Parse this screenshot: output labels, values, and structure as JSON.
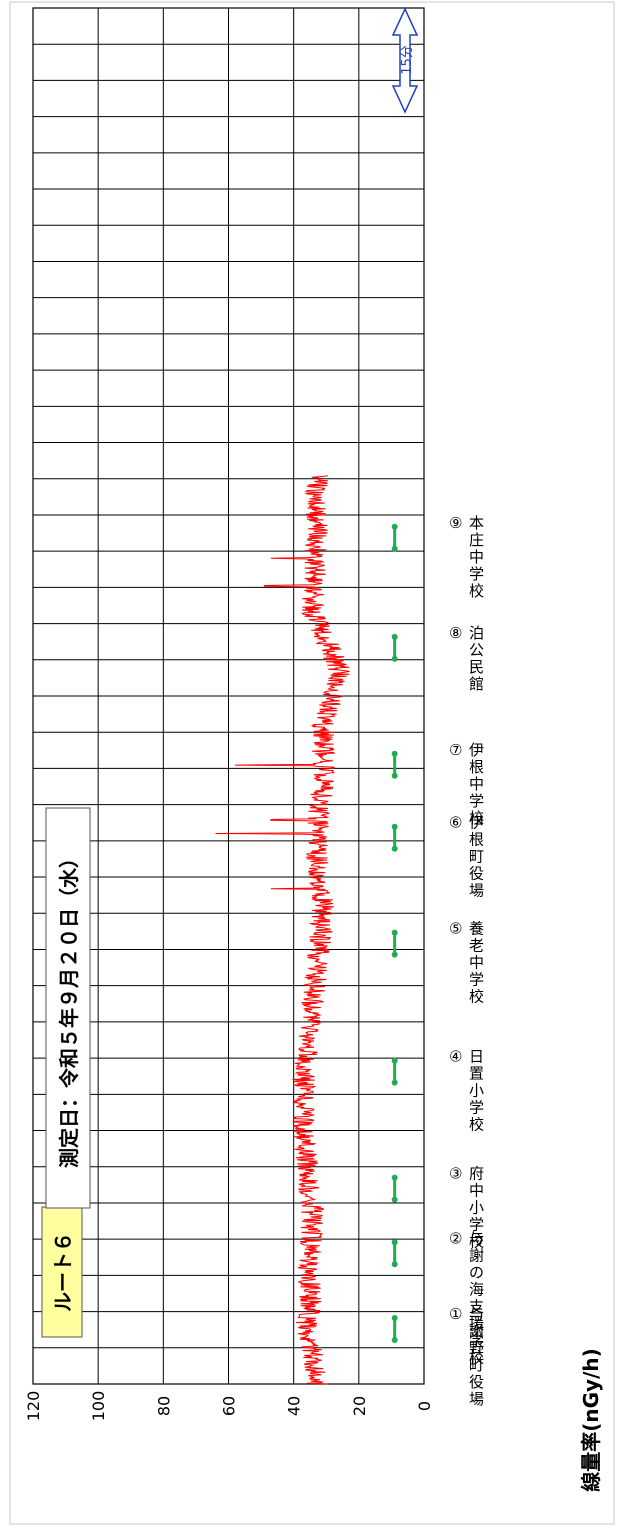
{
  "chart_data": {
    "type": "line",
    "orientation": "rotated-90-ccw",
    "ylabel": "線量率(nGy/h)",
    "ylim": [
      0,
      120
    ],
    "yticks": [
      0,
      20,
      40,
      60,
      80,
      100,
      120
    ],
    "y_tick_labels": [
      "0",
      "20",
      "40",
      "60",
      "80",
      "100",
      "120"
    ],
    "grid": true,
    "time_scale_label": "15分",
    "series": [
      {
        "color": "#ff0000",
        "approx_profile": [
          {
            "t": 0.0,
            "v": 33
          },
          {
            "t": 0.02,
            "v": 34
          },
          {
            "t": 0.04,
            "v": 36
          },
          {
            "t": 0.06,
            "v": 35
          },
          {
            "t": 0.08,
            "v": 35
          },
          {
            "t": 0.1,
            "v": 35
          },
          {
            "t": 0.12,
            "v": 34
          },
          {
            "t": 0.14,
            "v": 35
          },
          {
            "t": 0.16,
            "v": 36
          },
          {
            "t": 0.18,
            "v": 37
          },
          {
            "t": 0.2,
            "v": 37
          },
          {
            "t": 0.22,
            "v": 37
          },
          {
            "t": 0.24,
            "v": 36
          },
          {
            "t": 0.26,
            "v": 35
          },
          {
            "t": 0.28,
            "v": 34
          },
          {
            "t": 0.3,
            "v": 33
          },
          {
            "t": 0.32,
            "v": 32
          },
          {
            "t": 0.34,
            "v": 31
          },
          {
            "t": 0.35,
            "v": 31
          },
          {
            "t": 0.36,
            "v": 33
          },
          {
            "t": 0.37,
            "v": 32
          },
          {
            "t": 0.38,
            "v": 33
          },
          {
            "t": 0.4,
            "v": 33
          },
          {
            "t": 0.42,
            "v": 32
          },
          {
            "t": 0.44,
            "v": 31
          },
          {
            "t": 0.46,
            "v": 31
          },
          {
            "t": 0.48,
            "v": 31
          },
          {
            "t": 0.5,
            "v": 28
          },
          {
            "t": 0.52,
            "v": 26
          },
          {
            "t": 0.54,
            "v": 30
          },
          {
            "t": 0.56,
            "v": 34
          },
          {
            "t": 0.58,
            "v": 34
          },
          {
            "t": 0.6,
            "v": 33
          },
          {
            "t": 0.62,
            "v": 33
          },
          {
            "t": 0.64,
            "v": 33
          },
          {
            "t": 0.66,
            "v": 33
          }
        ],
        "spikes": [
          {
            "t": 0.36,
            "v": 47
          },
          {
            "t": 0.4,
            "v": 64
          },
          {
            "t": 0.41,
            "v": 47
          },
          {
            "t": 0.45,
            "v": 58
          },
          {
            "t": 0.58,
            "v": 49
          },
          {
            "t": 0.6,
            "v": 47
          }
        ]
      }
    ],
    "annotations": [
      {
        "text": "ルート６",
        "style": "yellow-box"
      },
      {
        "text": "測定日：令和５年９月２０日（水）",
        "style": "white-box"
      }
    ],
    "stations": [
      {
        "label": "① 与謝野町役場",
        "t": 0.04
      },
      {
        "label": "② 与謝の海支援学校",
        "t": 0.095
      },
      {
        "label": "③ 府中小学校",
        "t": 0.142
      },
      {
        "label": "④ 日置小学校",
        "t": 0.227
      },
      {
        "label": "⑤ 養老中学校",
        "t": 0.32
      },
      {
        "label": "⑥ 伊根町役場",
        "t": 0.397
      },
      {
        "label": "⑦ 伊根中学校",
        "t": 0.45
      },
      {
        "label": "⑧ 泊公民館",
        "t": 0.535
      },
      {
        "label": "⑨ 本庄中学校",
        "t": 0.615
      }
    ],
    "station_marker_value": 9,
    "station_marker_color": "#22aa55"
  }
}
